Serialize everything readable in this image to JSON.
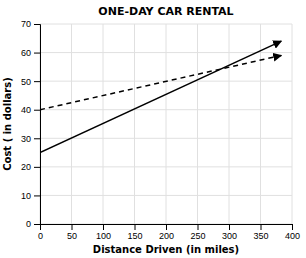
{
  "chart_data": {
    "type": "line",
    "title": "ONE-DAY CAR RENTAL",
    "xlabel": "Distance Driven (in miles)",
    "ylabel": "Cost ( in dollars)",
    "x": [
      0,
      383
    ],
    "series": [
      {
        "values": [
          25,
          64
        ],
        "color": "#000000",
        "line_style": "solid"
      },
      {
        "values": [
          40,
          59
        ],
        "color": "#000000",
        "line_style": "dashed"
      }
    ],
    "xlim": [
      0,
      400
    ],
    "ylim": [
      0,
      70
    ],
    "xticks": [
      0,
      50,
      100,
      150,
      200,
      250,
      300,
      350,
      400
    ],
    "yticks": [
      0,
      10,
      20,
      30,
      40,
      50,
      60,
      70
    ],
    "grid": true
  }
}
